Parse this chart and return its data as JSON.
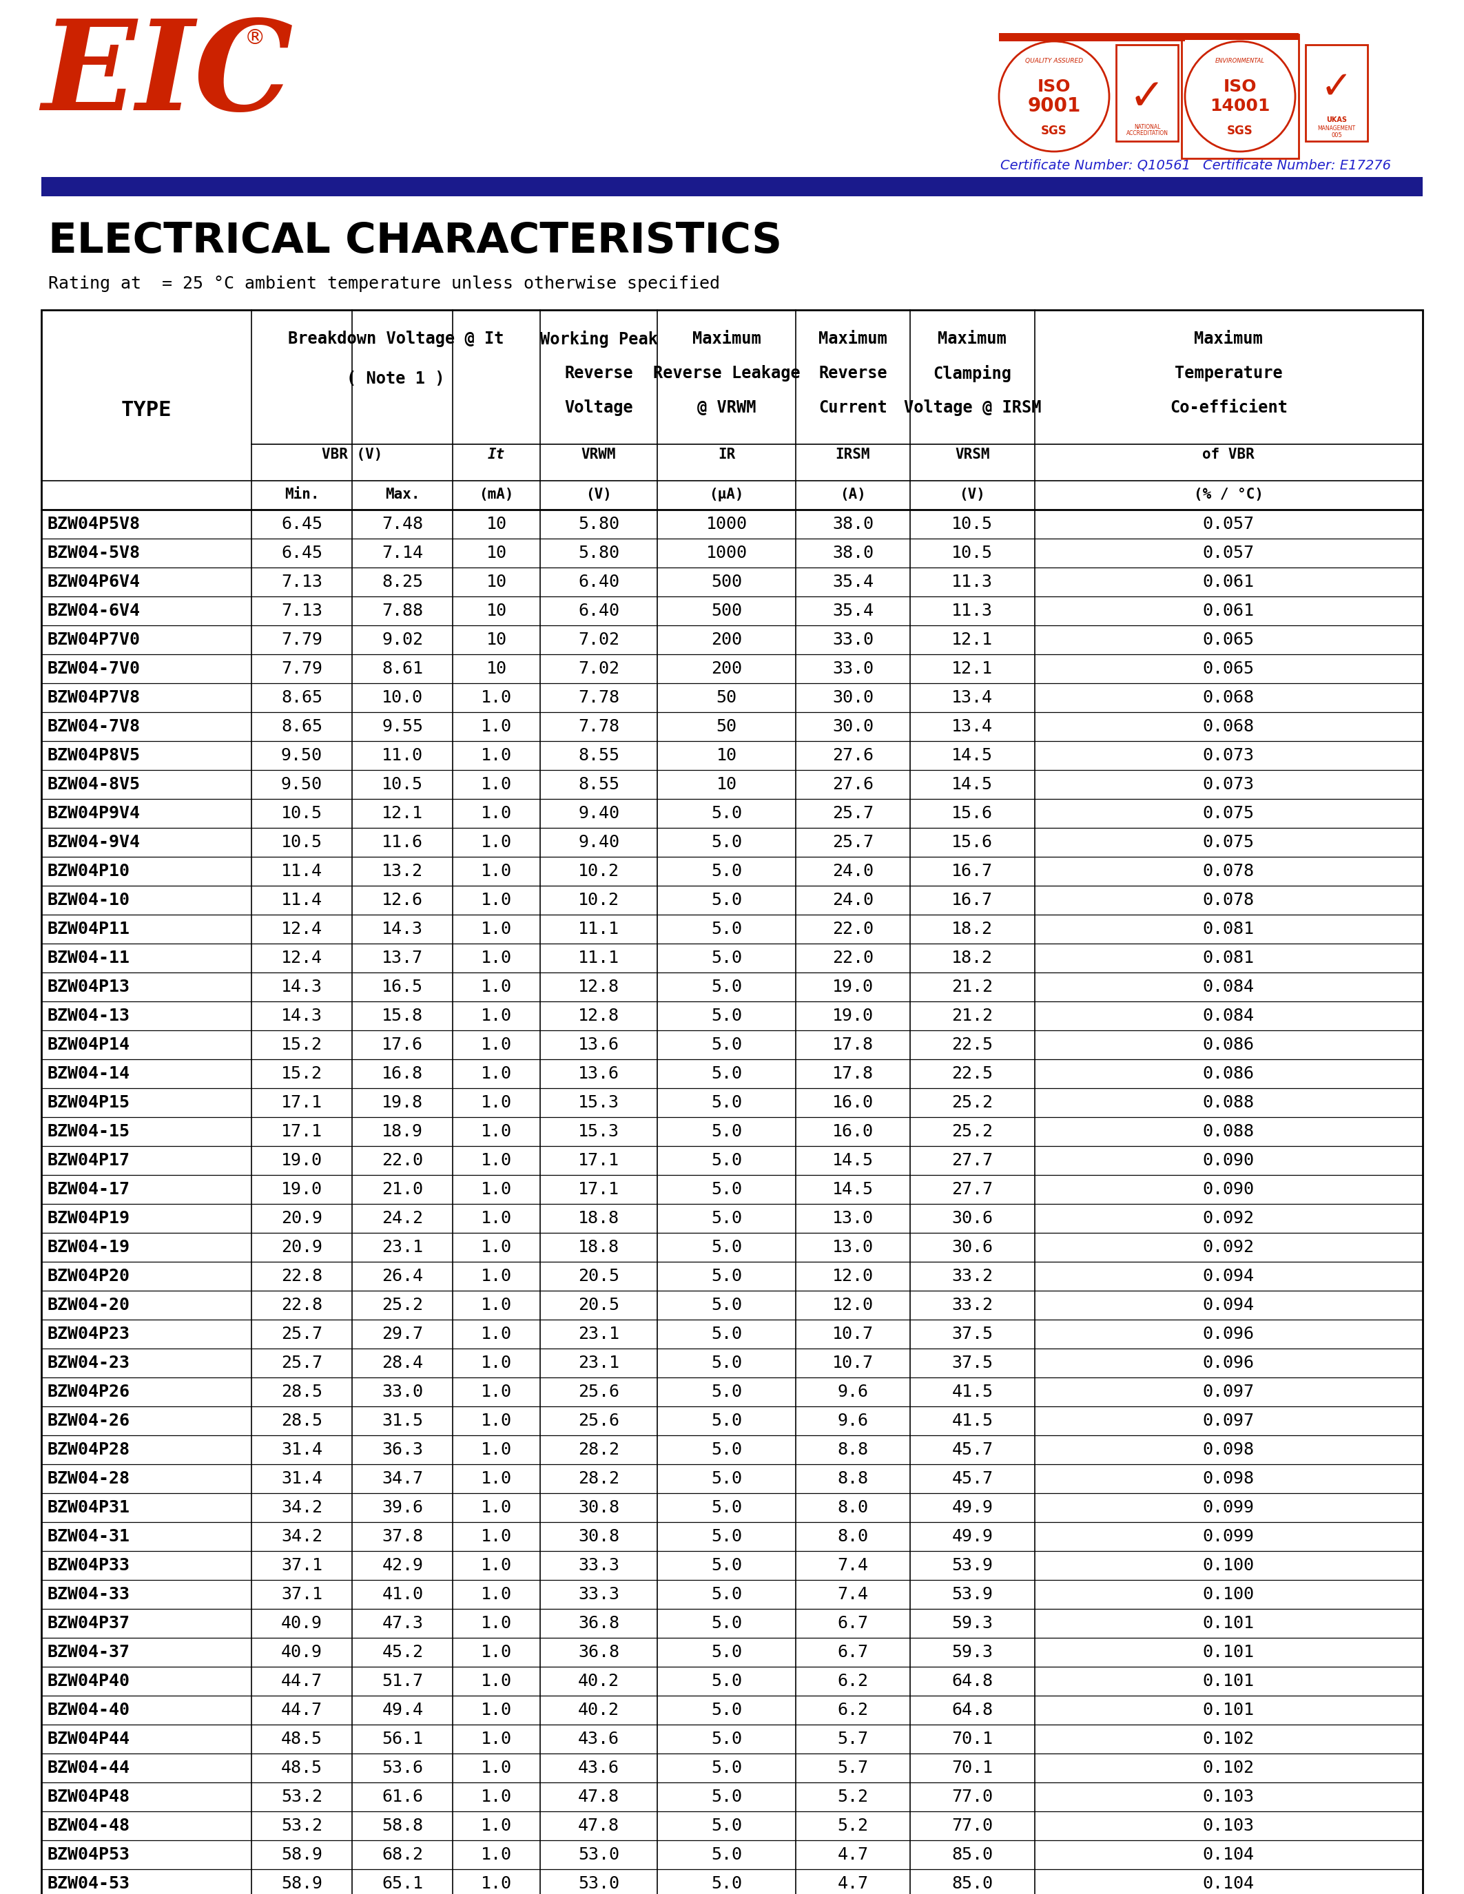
{
  "title": "ELECTRICAL CHARACTERISTICS",
  "subtitle": "Rating at  = 25 °C ambient temperature unless otherwise specified",
  "bg_color": "#ffffff",
  "header_bar_color": "#1a1a8c",
  "logo_color": "#cc2200",
  "cert_text1": "Certificate Number: Q10561",
  "cert_text2": "Certificate Number: E17276",
  "table_data": [
    [
      "BZW04P5V8",
      "6.45",
      "7.48",
      "10",
      "5.80",
      "1000",
      "38.0",
      "10.5",
      "0.057"
    ],
    [
      "BZW04-5V8",
      "6.45",
      "7.14",
      "10",
      "5.80",
      "1000",
      "38.0",
      "10.5",
      "0.057"
    ],
    [
      "BZW04P6V4",
      "7.13",
      "8.25",
      "10",
      "6.40",
      "500",
      "35.4",
      "11.3",
      "0.061"
    ],
    [
      "BZW04-6V4",
      "7.13",
      "7.88",
      "10",
      "6.40",
      "500",
      "35.4",
      "11.3",
      "0.061"
    ],
    [
      "BZW04P7V0",
      "7.79",
      "9.02",
      "10",
      "7.02",
      "200",
      "33.0",
      "12.1",
      "0.065"
    ],
    [
      "BZW04-7V0",
      "7.79",
      "8.61",
      "10",
      "7.02",
      "200",
      "33.0",
      "12.1",
      "0.065"
    ],
    [
      "BZW04P7V8",
      "8.65",
      "10.0",
      "1.0",
      "7.78",
      "50",
      "30.0",
      "13.4",
      "0.068"
    ],
    [
      "BZW04-7V8",
      "8.65",
      "9.55",
      "1.0",
      "7.78",
      "50",
      "30.0",
      "13.4",
      "0.068"
    ],
    [
      "BZW04P8V5",
      "9.50",
      "11.0",
      "1.0",
      "8.55",
      "10",
      "27.6",
      "14.5",
      "0.073"
    ],
    [
      "BZW04-8V5",
      "9.50",
      "10.5",
      "1.0",
      "8.55",
      "10",
      "27.6",
      "14.5",
      "0.073"
    ],
    [
      "BZW04P9V4",
      "10.5",
      "12.1",
      "1.0",
      "9.40",
      "5.0",
      "25.7",
      "15.6",
      "0.075"
    ],
    [
      "BZW04-9V4",
      "10.5",
      "11.6",
      "1.0",
      "9.40",
      "5.0",
      "25.7",
      "15.6",
      "0.075"
    ],
    [
      "BZW04P10",
      "11.4",
      "13.2",
      "1.0",
      "10.2",
      "5.0",
      "24.0",
      "16.7",
      "0.078"
    ],
    [
      "BZW04-10",
      "11.4",
      "12.6",
      "1.0",
      "10.2",
      "5.0",
      "24.0",
      "16.7",
      "0.078"
    ],
    [
      "BZW04P11",
      "12.4",
      "14.3",
      "1.0",
      "11.1",
      "5.0",
      "22.0",
      "18.2",
      "0.081"
    ],
    [
      "BZW04-11",
      "12.4",
      "13.7",
      "1.0",
      "11.1",
      "5.0",
      "22.0",
      "18.2",
      "0.081"
    ],
    [
      "BZW04P13",
      "14.3",
      "16.5",
      "1.0",
      "12.8",
      "5.0",
      "19.0",
      "21.2",
      "0.084"
    ],
    [
      "BZW04-13",
      "14.3",
      "15.8",
      "1.0",
      "12.8",
      "5.0",
      "19.0",
      "21.2",
      "0.084"
    ],
    [
      "BZW04P14",
      "15.2",
      "17.6",
      "1.0",
      "13.6",
      "5.0",
      "17.8",
      "22.5",
      "0.086"
    ],
    [
      "BZW04-14",
      "15.2",
      "16.8",
      "1.0",
      "13.6",
      "5.0",
      "17.8",
      "22.5",
      "0.086"
    ],
    [
      "BZW04P15",
      "17.1",
      "19.8",
      "1.0",
      "15.3",
      "5.0",
      "16.0",
      "25.2",
      "0.088"
    ],
    [
      "BZW04-15",
      "17.1",
      "18.9",
      "1.0",
      "15.3",
      "5.0",
      "16.0",
      "25.2",
      "0.088"
    ],
    [
      "BZW04P17",
      "19.0",
      "22.0",
      "1.0",
      "17.1",
      "5.0",
      "14.5",
      "27.7",
      "0.090"
    ],
    [
      "BZW04-17",
      "19.0",
      "21.0",
      "1.0",
      "17.1",
      "5.0",
      "14.5",
      "27.7",
      "0.090"
    ],
    [
      "BZW04P19",
      "20.9",
      "24.2",
      "1.0",
      "18.8",
      "5.0",
      "13.0",
      "30.6",
      "0.092"
    ],
    [
      "BZW04-19",
      "20.9",
      "23.1",
      "1.0",
      "18.8",
      "5.0",
      "13.0",
      "30.6",
      "0.092"
    ],
    [
      "BZW04P20",
      "22.8",
      "26.4",
      "1.0",
      "20.5",
      "5.0",
      "12.0",
      "33.2",
      "0.094"
    ],
    [
      "BZW04-20",
      "22.8",
      "25.2",
      "1.0",
      "20.5",
      "5.0",
      "12.0",
      "33.2",
      "0.094"
    ],
    [
      "BZW04P23",
      "25.7",
      "29.7",
      "1.0",
      "23.1",
      "5.0",
      "10.7",
      "37.5",
      "0.096"
    ],
    [
      "BZW04-23",
      "25.7",
      "28.4",
      "1.0",
      "23.1",
      "5.0",
      "10.7",
      "37.5",
      "0.096"
    ],
    [
      "BZW04P26",
      "28.5",
      "33.0",
      "1.0",
      "25.6",
      "5.0",
      "9.6",
      "41.5",
      "0.097"
    ],
    [
      "BZW04-26",
      "28.5",
      "31.5",
      "1.0",
      "25.6",
      "5.0",
      "9.6",
      "41.5",
      "0.097"
    ],
    [
      "BZW04P28",
      "31.4",
      "36.3",
      "1.0",
      "28.2",
      "5.0",
      "8.8",
      "45.7",
      "0.098"
    ],
    [
      "BZW04-28",
      "31.4",
      "34.7",
      "1.0",
      "28.2",
      "5.0",
      "8.8",
      "45.7",
      "0.098"
    ],
    [
      "BZW04P31",
      "34.2",
      "39.6",
      "1.0",
      "30.8",
      "5.0",
      "8.0",
      "49.9",
      "0.099"
    ],
    [
      "BZW04-31",
      "34.2",
      "37.8",
      "1.0",
      "30.8",
      "5.0",
      "8.0",
      "49.9",
      "0.099"
    ],
    [
      "BZW04P33",
      "37.1",
      "42.9",
      "1.0",
      "33.3",
      "5.0",
      "7.4",
      "53.9",
      "0.100"
    ],
    [
      "BZW04-33",
      "37.1",
      "41.0",
      "1.0",
      "33.3",
      "5.0",
      "7.4",
      "53.9",
      "0.100"
    ],
    [
      "BZW04P37",
      "40.9",
      "47.3",
      "1.0",
      "36.8",
      "5.0",
      "6.7",
      "59.3",
      "0.101"
    ],
    [
      "BZW04-37",
      "40.9",
      "45.2",
      "1.0",
      "36.8",
      "5.0",
      "6.7",
      "59.3",
      "0.101"
    ],
    [
      "BZW04P40",
      "44.7",
      "51.7",
      "1.0",
      "40.2",
      "5.0",
      "6.2",
      "64.8",
      "0.101"
    ],
    [
      "BZW04-40",
      "44.7",
      "49.4",
      "1.0",
      "40.2",
      "5.0",
      "6.2",
      "64.8",
      "0.101"
    ],
    [
      "BZW04P44",
      "48.5",
      "56.1",
      "1.0",
      "43.6",
      "5.0",
      "5.7",
      "70.1",
      "0.102"
    ],
    [
      "BZW04-44",
      "48.5",
      "53.6",
      "1.0",
      "43.6",
      "5.0",
      "5.7",
      "70.1",
      "0.102"
    ],
    [
      "BZW04P48",
      "53.2",
      "61.6",
      "1.0",
      "47.8",
      "5.0",
      "5.2",
      "77.0",
      "0.103"
    ],
    [
      "BZW04-48",
      "53.2",
      "58.8",
      "1.0",
      "47.8",
      "5.0",
      "5.2",
      "77.0",
      "0.103"
    ],
    [
      "BZW04P53",
      "58.9",
      "68.2",
      "1.0",
      "53.0",
      "5.0",
      "4.7",
      "85.0",
      "0.104"
    ],
    [
      "BZW04-53",
      "58.9",
      "65.1",
      "1.0",
      "53.0",
      "5.0",
      "4.7",
      "85.0",
      "0.104"
    ]
  ]
}
